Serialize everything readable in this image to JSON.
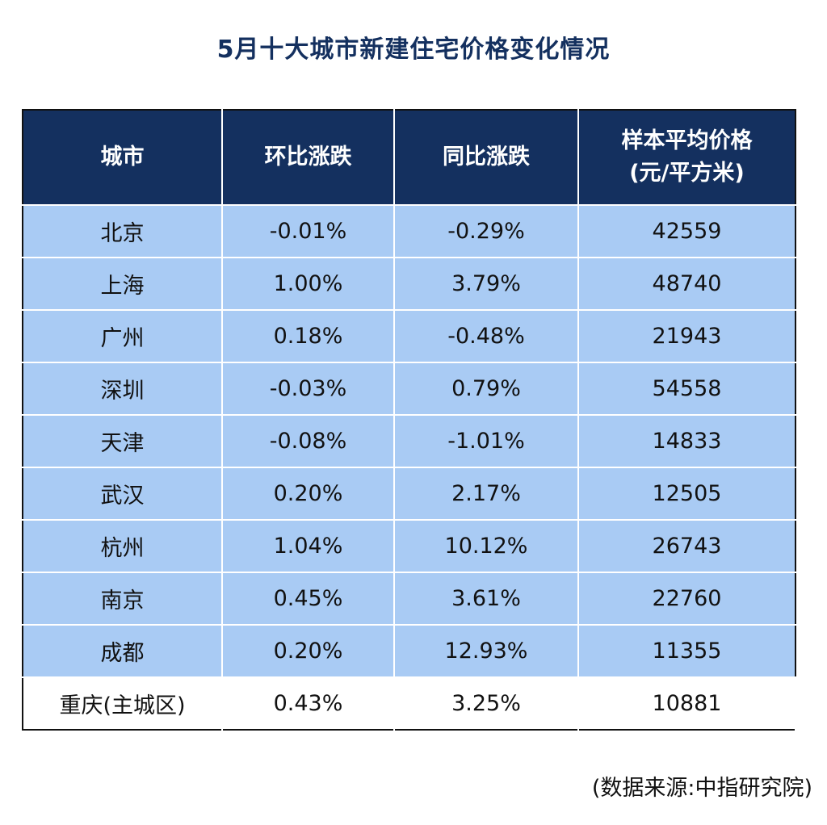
{
  "title": "5月十大城市新建住宅价格变化情况",
  "chart_data": {
    "type": "table",
    "columns": [
      {
        "lines": [
          "城市"
        ]
      },
      {
        "lines": [
          "环比涨跌"
        ]
      },
      {
        "lines": [
          "同比涨跌"
        ]
      },
      {
        "lines": [
          "样本平均价格",
          "(元/平方米)"
        ]
      }
    ],
    "rows": [
      [
        "北京",
        "-0.01%",
        "-0.29%",
        "42559"
      ],
      [
        "上海",
        "1.00%",
        "3.79%",
        "48740"
      ],
      [
        "广州",
        "0.18%",
        "-0.48%",
        "21943"
      ],
      [
        "深圳",
        "-0.03%",
        "0.79%",
        "54558"
      ],
      [
        "天津",
        "-0.08%",
        "-1.01%",
        "14833"
      ],
      [
        "武汉",
        "0.20%",
        "2.17%",
        "12505"
      ],
      [
        "杭州",
        "1.04%",
        "10.12%",
        "26743"
      ],
      [
        "南京",
        "0.45%",
        "3.61%",
        "22760"
      ],
      [
        "成都",
        "0.20%",
        "12.93%",
        "11355"
      ],
      [
        "重庆(主城区)",
        "0.43%",
        "3.25%",
        "10881"
      ]
    ]
  },
  "source": "(数据来源:中指研究院)",
  "colors": {
    "header_bg": "#14305f",
    "row_bg": "#a9cbf4",
    "title": "#14305f"
  }
}
